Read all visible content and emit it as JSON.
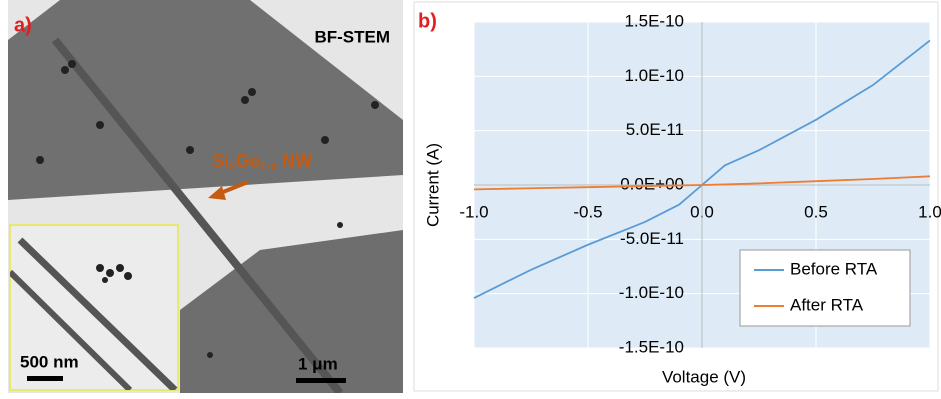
{
  "panel_a": {
    "label": "a)",
    "mode": "BF-STEM",
    "nanowire_label": [
      "Si",
      "x",
      "Ge",
      "1-x",
      " NW"
    ],
    "inset_scale": "500 nm",
    "main_scale": "1 μm"
  },
  "chart_data": {
    "type": "line",
    "panel_label": "b)",
    "x_label": "Voltage (V)",
    "y_label": "Current (A)",
    "x": [
      -1.0,
      -0.75,
      -0.5,
      -0.25,
      -0.1,
      0,
      0.1,
      0.25,
      0.5,
      0.75,
      1.0
    ],
    "series": [
      {
        "name": "Before RTA",
        "color": "#5b9bd5",
        "values": [
          -1.04e-10,
          -7.8e-11,
          -5.5e-11,
          -3.4e-11,
          -1.8e-11,
          0,
          1.8e-11,
          3.2e-11,
          6e-11,
          9.2e-11,
          1.33e-10
        ]
      },
      {
        "name": "After RTA",
        "color": "#ed7d31",
        "values": [
          -4e-12,
          -3e-12,
          -2e-12,
          -1e-12,
          -4e-13,
          0,
          5e-13,
          1.5e-12,
          3.5e-12,
          5.5e-12,
          8e-12
        ]
      }
    ],
    "xlim": [
      -1.0,
      1.0
    ],
    "xticks": [
      {
        "value": -1.0,
        "label": "-1.0"
      },
      {
        "value": -0.5,
        "label": "-0.5"
      },
      {
        "value": 0,
        "label": "0.0"
      },
      {
        "value": 0.5,
        "label": "0.5"
      },
      {
        "value": 1.0,
        "label": "1.0"
      }
    ],
    "ylim": [
      -1.5e-10,
      1.5e-10
    ],
    "yticks": [
      {
        "value": -1.5e-10,
        "label": "-1.5E-10"
      },
      {
        "value": -1e-10,
        "label": "-1.0E-10"
      },
      {
        "value": -5e-11,
        "label": "-5.0E-11"
      },
      {
        "value": 0,
        "label": "0.0E+00"
      },
      {
        "value": 5e-11,
        "label": "5.0E-11"
      },
      {
        "value": 1e-10,
        "label": "1.0E-10"
      },
      {
        "value": 1.5e-10,
        "label": "1.5E-10"
      }
    ],
    "grid": true,
    "background": "#deebf7",
    "legend": "lower right"
  }
}
